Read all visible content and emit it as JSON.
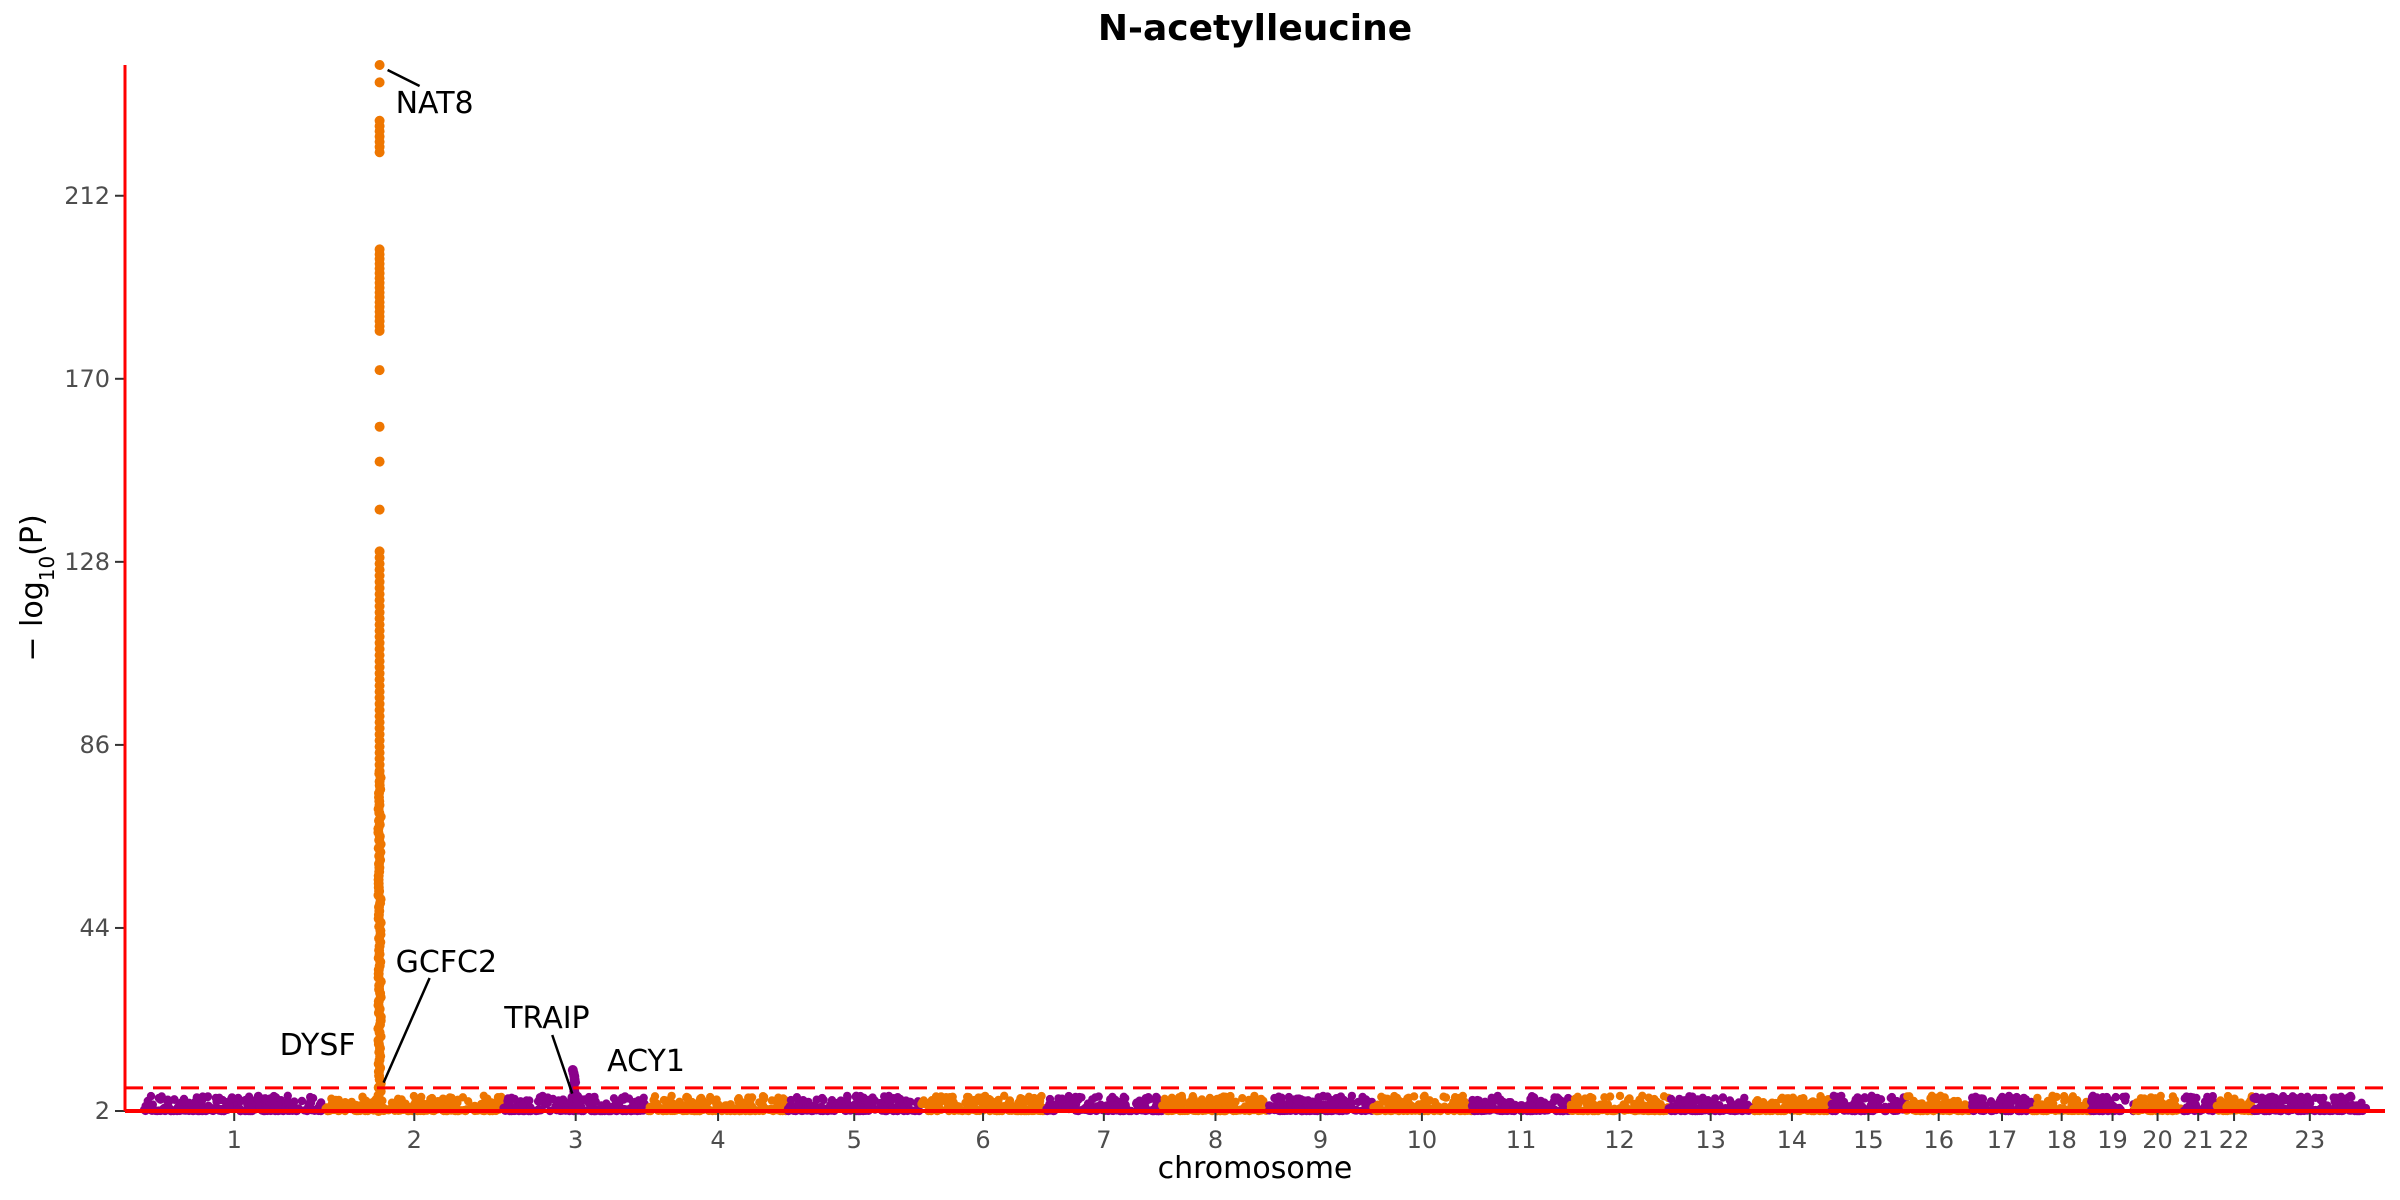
{
  "chart_data": {
    "type": "scatter",
    "subtype": "manhattan",
    "title": "N-acetylleucine",
    "xlabel": "chromosome",
    "ylabel_parts": {
      "prefix": "− log",
      "subscript": "10",
      "suffix": "(P)"
    },
    "ylim": [
      2,
      242
    ],
    "yticks": [
      2,
      44,
      86,
      128,
      170,
      212
    ],
    "threshold": 7.3,
    "grid": false,
    "legend": "none",
    "colors": {
      "odd_chromosome": "#8B008B",
      "even_chromosome": "#EE7600",
      "threshold_line": "#FF0000",
      "axis": "#FF0000"
    },
    "chromosomes": [
      {
        "label": "1",
        "len": 249
      },
      {
        "label": "2",
        "len": 243
      },
      {
        "label": "3",
        "len": 198
      },
      {
        "label": "4",
        "len": 191
      },
      {
        "label": "5",
        "len": 181
      },
      {
        "label": "6",
        "len": 171
      },
      {
        "label": "7",
        "len": 159
      },
      {
        "label": "8",
        "len": 146
      },
      {
        "label": "9",
        "len": 141
      },
      {
        "label": "10",
        "len": 136
      },
      {
        "label": "11",
        "len": 135
      },
      {
        "label": "12",
        "len": 134
      },
      {
        "label": "13",
        "len": 115
      },
      {
        "label": "14",
        "len": 107
      },
      {
        "label": "15",
        "len": 102
      },
      {
        "label": "16",
        "len": 90
      },
      {
        "label": "17",
        "len": 83
      },
      {
        "label": "18",
        "len": 80
      },
      {
        "label": "19",
        "len": 59
      },
      {
        "label": "20",
        "len": 64
      },
      {
        "label": "21",
        "len": 47
      },
      {
        "label": "22",
        "len": 51
      },
      {
        "label": "23",
        "len": 156
      }
    ],
    "peaks": [
      {
        "chr": "2",
        "pos_fraction": 0.305,
        "max_logp": 240,
        "gene": "NAT8"
      },
      {
        "chr": "2",
        "pos_fraction": 0.308,
        "max_logp": 12,
        "gene": "GCFC2"
      },
      {
        "chr": "2",
        "pos_fraction": 0.3,
        "max_logp": 9,
        "gene": "DYSF"
      },
      {
        "chr": "3",
        "pos_fraction": 0.49,
        "max_logp": 12,
        "gene": "TRAIP"
      },
      {
        "chr": "3",
        "pos_fraction": 0.51,
        "max_logp": 6,
        "gene": "ACY1"
      }
    ],
    "annotations": [
      "NAT8",
      "GCFC2",
      "DYSF",
      "TRAIP",
      "ACY1"
    ]
  }
}
